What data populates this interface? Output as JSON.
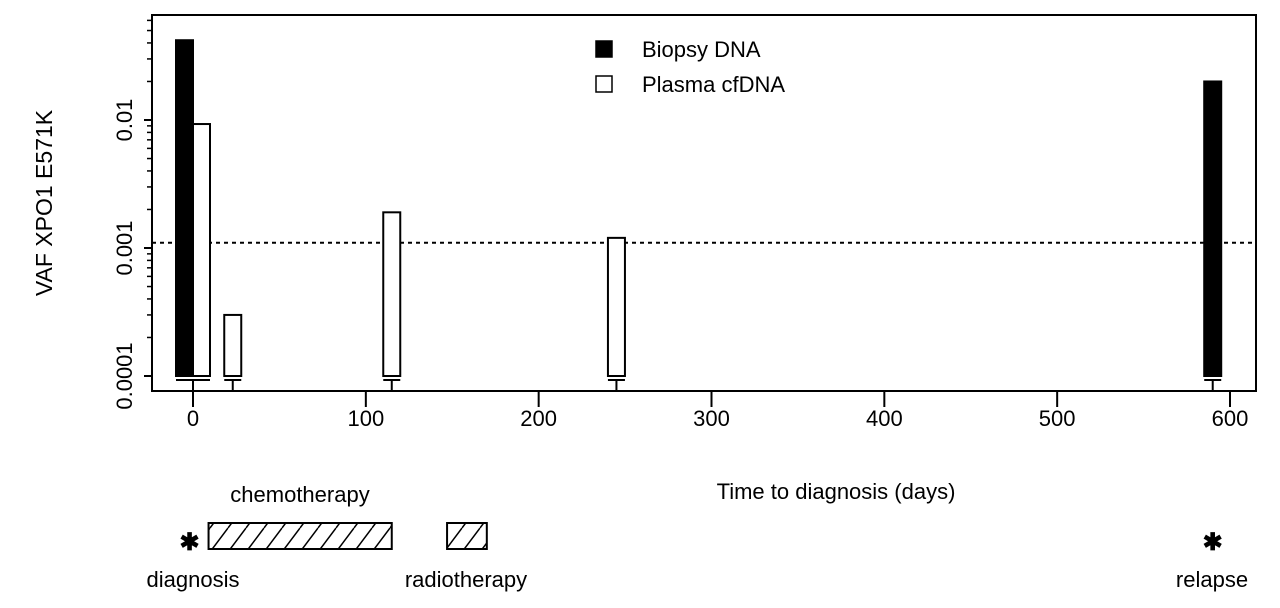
{
  "chart_data": {
    "type": "bar",
    "ylabel": "VAF XPO1 E571K",
    "xlabel": "Time to diagnosis (days)",
    "yscale": "log",
    "ylim": [
      8e-05,
      0.07
    ],
    "xlim": [
      -22,
      620
    ],
    "yticks": [
      {
        "value": 0.0001,
        "label": "0.0001"
      },
      {
        "value": 0.001,
        "label": "0.001"
      },
      {
        "value": 0.01,
        "label": "0.01"
      }
    ],
    "xticks": [
      {
        "value": 0,
        "label": "0"
      },
      {
        "value": 100,
        "label": "100"
      },
      {
        "value": 200,
        "label": "200"
      },
      {
        "value": 300,
        "label": "300"
      },
      {
        "value": 400,
        "label": "400"
      },
      {
        "value": 500,
        "label": "500"
      },
      {
        "value": 600,
        "label": "600"
      }
    ],
    "grid": false,
    "legend_position": "top-center",
    "series": [
      {
        "name": "Biopsy DNA",
        "color": "#000000",
        "points": [
          {
            "x": 0,
            "y": 0.042
          },
          {
            "x": 590,
            "y": 0.02
          }
        ]
      },
      {
        "name": "Plasma cfDNA",
        "color": "#ffffff",
        "points": [
          {
            "x": 0,
            "y": 0.0093
          },
          {
            "x": 23,
            "y": 0.0003
          },
          {
            "x": 115,
            "y": 0.0019
          },
          {
            "x": 245,
            "y": 0.0012
          }
        ]
      }
    ],
    "threshold": {
      "y": 0.0011,
      "style": "dotted"
    },
    "timeline": {
      "events": [
        {
          "label": "diagnosis",
          "x": -2
        },
        {
          "label": "relapse",
          "x": 590
        }
      ],
      "periods": [
        {
          "label": "chemotherapy",
          "start": 9,
          "end": 115
        },
        {
          "label": "radiotherapy",
          "start": 147,
          "end": 170
        }
      ]
    }
  }
}
